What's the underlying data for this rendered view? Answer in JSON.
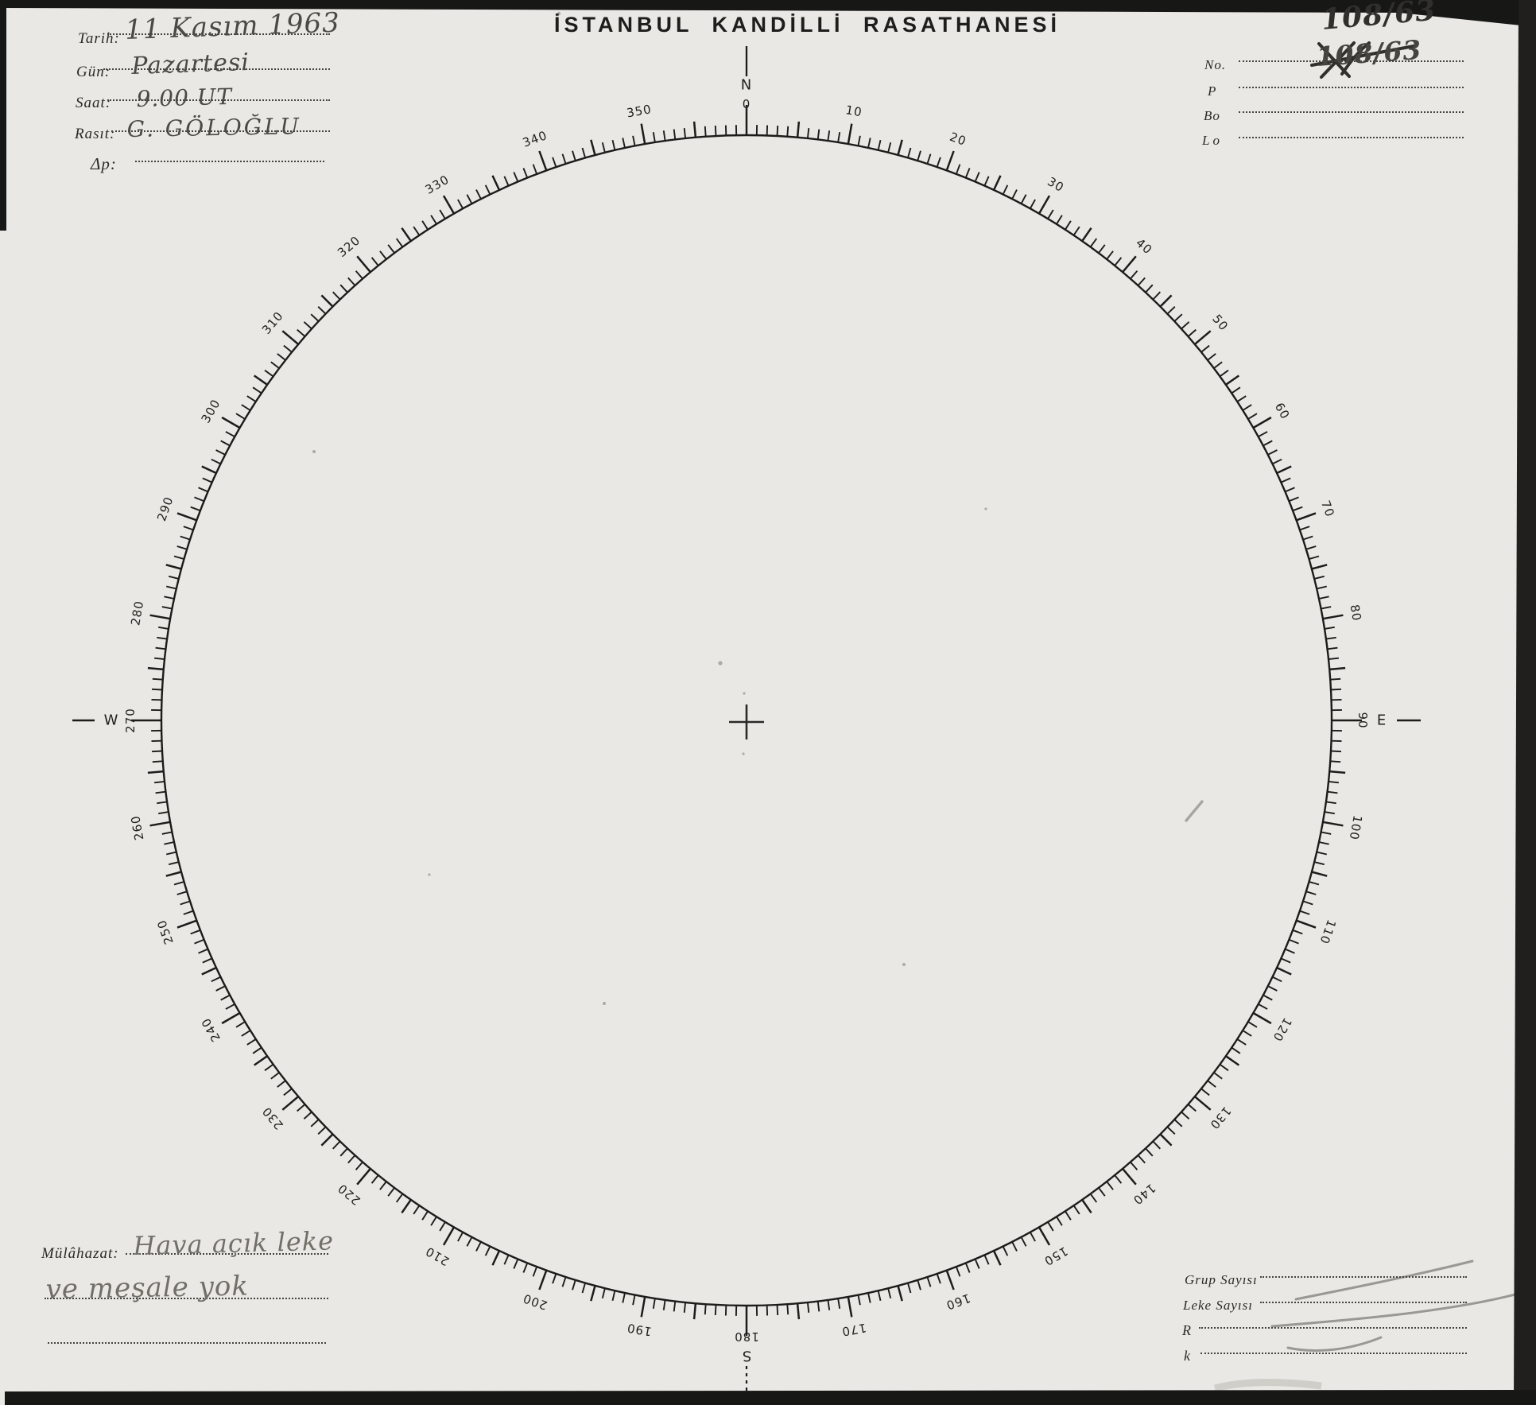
{
  "title": "İSTANBUL KANDİLLİ RASATHANESİ",
  "header_left": {
    "fields": [
      {
        "label": "Tarih:",
        "value": "11 Kasım 1963"
      },
      {
        "label": "Gün:",
        "value": "Pazartesi"
      },
      {
        "label": "Saat:",
        "value": "9.00 UT"
      },
      {
        "label": "Rasıt:",
        "value": "G. GÖLOĞLU"
      },
      {
        "label": "Δp:",
        "value": ""
      }
    ]
  },
  "header_right": {
    "note": "108/63",
    "fields": [
      {
        "label": "No.",
        "value": "108/63"
      },
      {
        "label": "P",
        "value": ""
      },
      {
        "label": "Bo",
        "value": ""
      },
      {
        "label": "Lo",
        "value": ""
      }
    ]
  },
  "footer_left": {
    "label": "Mülâhazat:",
    "lines": [
      "Hava açık leke",
      "ve meşale yok",
      ""
    ]
  },
  "footer_right": {
    "fields": [
      {
        "label": "Grup Sayısı",
        "value": ""
      },
      {
        "label": "Leke Sayısı",
        "value": ""
      },
      {
        "label": "R",
        "value": ""
      },
      {
        "label": "k",
        "value": ""
      }
    ]
  },
  "compass": {
    "degree_labels": [
      "0",
      "10",
      "20",
      "30",
      "40",
      "50",
      "60",
      "70",
      "80",
      "90",
      "100",
      "110",
      "120",
      "130",
      "140",
      "150",
      "160",
      "170",
      "180",
      "190",
      "200",
      "210",
      "220",
      "230",
      "240",
      "250",
      "260",
      "270",
      "280",
      "290",
      "300",
      "310",
      "320",
      "330",
      "340",
      "350"
    ],
    "cardinal_letters": {
      "0": "N",
      "90": "E",
      "180": "S",
      "270": "W"
    }
  }
}
